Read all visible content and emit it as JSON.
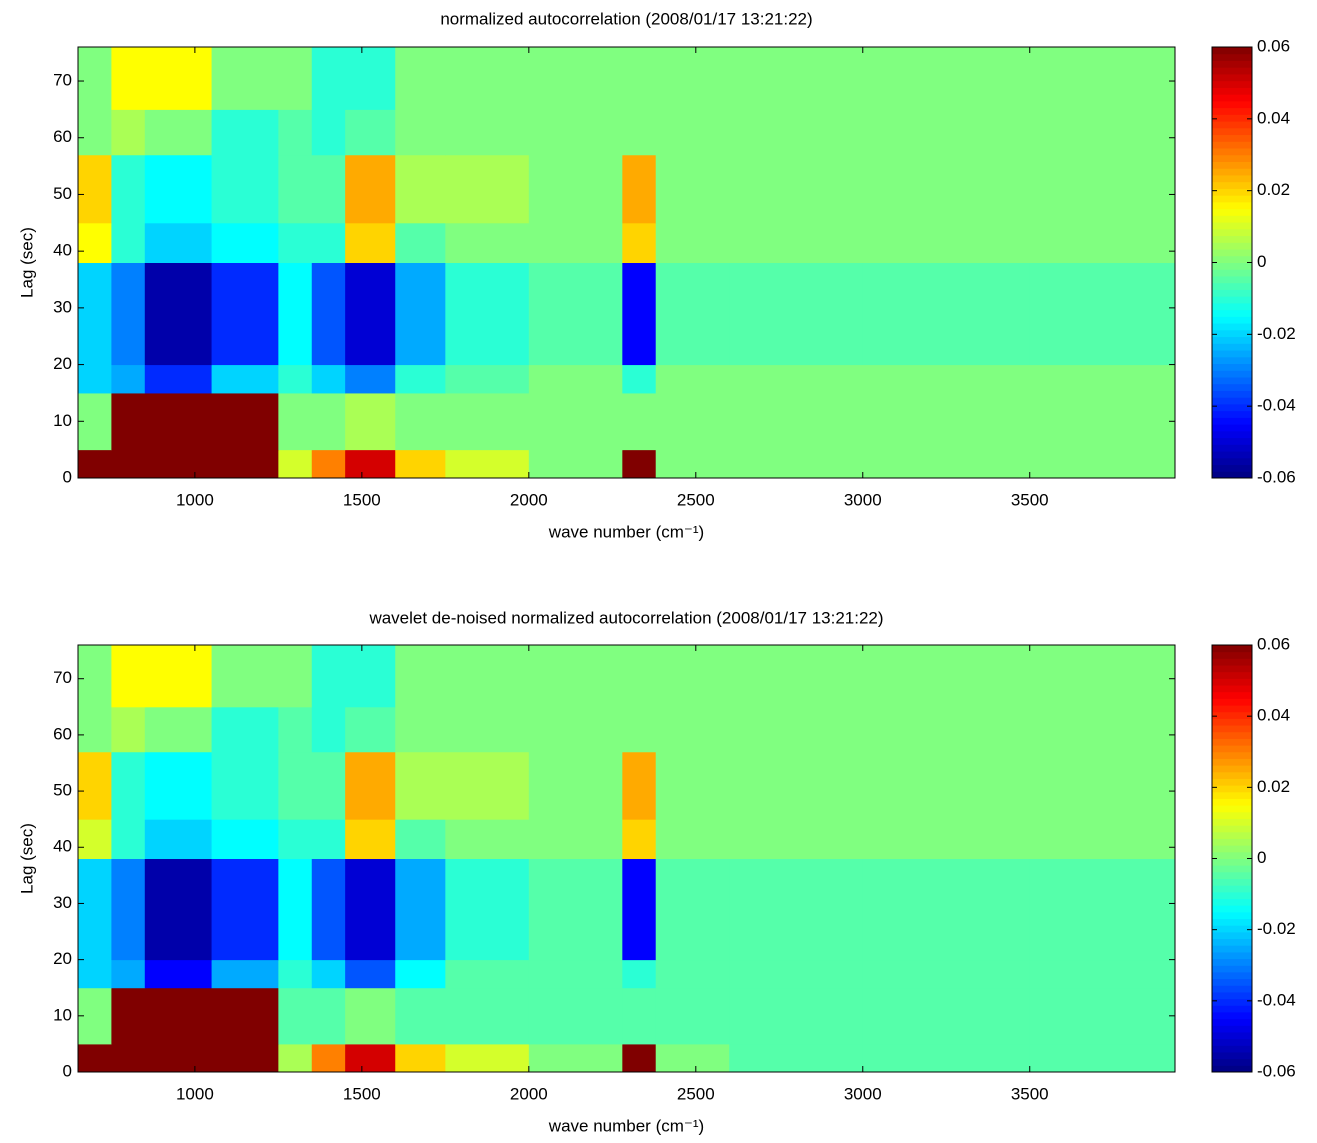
{
  "chart_data": [
    {
      "type": "heatmap",
      "title": "normalized autocorrelation (2008/01/17 13:21:22)",
      "xlabel": "wave number (cm⁻¹)",
      "ylabel": "Lag (sec)",
      "xbins": [
        650,
        750,
        850,
        1050,
        1250,
        1350,
        1450,
        1600,
        1750,
        2000,
        2280,
        2380,
        2600,
        3000,
        3500,
        3935
      ],
      "ybins": [
        0,
        5,
        15,
        20,
        38,
        45,
        57,
        65,
        76
      ],
      "values": [
        [
          0.06,
          0.06,
          0.06,
          0.06,
          0.01,
          0.03,
          0.05,
          0.02,
          0.01,
          0,
          0.06,
          0,
          0,
          0,
          0
        ],
        [
          0,
          0.06,
          0.06,
          0.06,
          0,
          0,
          0.005,
          0,
          0,
          0,
          0,
          0,
          0,
          0,
          0
        ],
        [
          -0.02,
          -0.025,
          -0.04,
          -0.02,
          -0.01,
          -0.02,
          -0.03,
          -0.01,
          -0.005,
          0,
          -0.01,
          0,
          0,
          0,
          0
        ],
        [
          -0.02,
          -0.03,
          -0.055,
          -0.04,
          -0.015,
          -0.035,
          -0.05,
          -0.025,
          -0.01,
          -0.005,
          -0.045,
          -0.005,
          -0.005,
          -0.005,
          -0.005
        ],
        [
          0.015,
          -0.01,
          -0.02,
          -0.015,
          -0.01,
          -0.01,
          0.02,
          -0.005,
          0,
          0,
          0.02,
          0,
          0,
          0,
          0
        ],
        [
          0.02,
          -0.01,
          -0.015,
          -0.01,
          -0.005,
          -0.005,
          0.025,
          0.005,
          0.005,
          0,
          0.025,
          0,
          0,
          0,
          0
        ],
        [
          0,
          0.005,
          0,
          -0.01,
          -0.005,
          -0.01,
          -0.005,
          0,
          0,
          0,
          0,
          0,
          0,
          0,
          0
        ],
        [
          0,
          0.015,
          0.015,
          0,
          0,
          -0.01,
          -0.01,
          0,
          0,
          0,
          0,
          0,
          0,
          0,
          0
        ]
      ],
      "xlim": [
        650,
        3935
      ],
      "ylim": [
        0,
        76
      ],
      "xticks": [
        1000,
        1500,
        2000,
        2500,
        3000,
        3500
      ],
      "yticks": [
        0,
        10,
        20,
        30,
        40,
        50,
        60,
        70
      ],
      "clim": [
        -0.06,
        0.06
      ],
      "cticks": [
        -0.06,
        -0.04,
        -0.02,
        0,
        0.02,
        0.04,
        0.06
      ],
      "colormap": "jet"
    },
    {
      "type": "heatmap",
      "title": "wavelet de-noised normalized autocorrelation (2008/01/17 13:21:22)",
      "xlabel": "wave number (cm⁻¹)",
      "ylabel": "Lag (sec)",
      "xbins": [
        650,
        750,
        850,
        1050,
        1250,
        1350,
        1450,
        1600,
        1750,
        2000,
        2280,
        2380,
        2600,
        3000,
        3500,
        3935
      ],
      "ybins": [
        0,
        5,
        15,
        20,
        38,
        45,
        57,
        65,
        76
      ],
      "values": [
        [
          0.06,
          0.06,
          0.06,
          0.06,
          0.005,
          0.03,
          0.05,
          0.02,
          0.01,
          0,
          0.06,
          0,
          -0.005,
          -0.005,
          -0.005
        ],
        [
          0,
          0.06,
          0.06,
          0.06,
          -0.005,
          -0.005,
          0,
          -0.005,
          -0.005,
          -0.005,
          -0.005,
          -0.005,
          -0.005,
          -0.005,
          -0.005
        ],
        [
          -0.02,
          -0.025,
          -0.045,
          -0.025,
          -0.01,
          -0.02,
          -0.035,
          -0.015,
          -0.005,
          -0.005,
          -0.01,
          -0.005,
          -0.005,
          -0.005,
          -0.005
        ],
        [
          -0.02,
          -0.03,
          -0.055,
          -0.04,
          -0.015,
          -0.035,
          -0.05,
          -0.025,
          -0.01,
          -0.005,
          -0.045,
          -0.005,
          -0.005,
          -0.005,
          -0.005
        ],
        [
          0.01,
          -0.01,
          -0.02,
          -0.015,
          -0.01,
          -0.01,
          0.02,
          -0.005,
          0,
          0,
          0.02,
          0,
          0,
          0,
          0
        ],
        [
          0.02,
          -0.01,
          -0.015,
          -0.01,
          -0.005,
          -0.005,
          0.025,
          0.005,
          0.005,
          0,
          0.025,
          0,
          0,
          0,
          0
        ],
        [
          0,
          0.005,
          0,
          -0.01,
          -0.005,
          -0.01,
          -0.005,
          0,
          0,
          0,
          0,
          0,
          0,
          0,
          0
        ],
        [
          0,
          0.015,
          0.015,
          0,
          0,
          -0.01,
          -0.01,
          0,
          0,
          0,
          0,
          0,
          0,
          0,
          0
        ]
      ],
      "xlim": [
        650,
        3935
      ],
      "ylim": [
        0,
        76
      ],
      "xticks": [
        1000,
        1500,
        2000,
        2500,
        3000,
        3500
      ],
      "yticks": [
        0,
        10,
        20,
        30,
        40,
        50,
        60,
        70
      ],
      "clim": [
        -0.06,
        0.06
      ],
      "cticks": [
        -0.06,
        -0.04,
        -0.02,
        0,
        0.02,
        0.04,
        0.06
      ],
      "colormap": "jet"
    }
  ]
}
